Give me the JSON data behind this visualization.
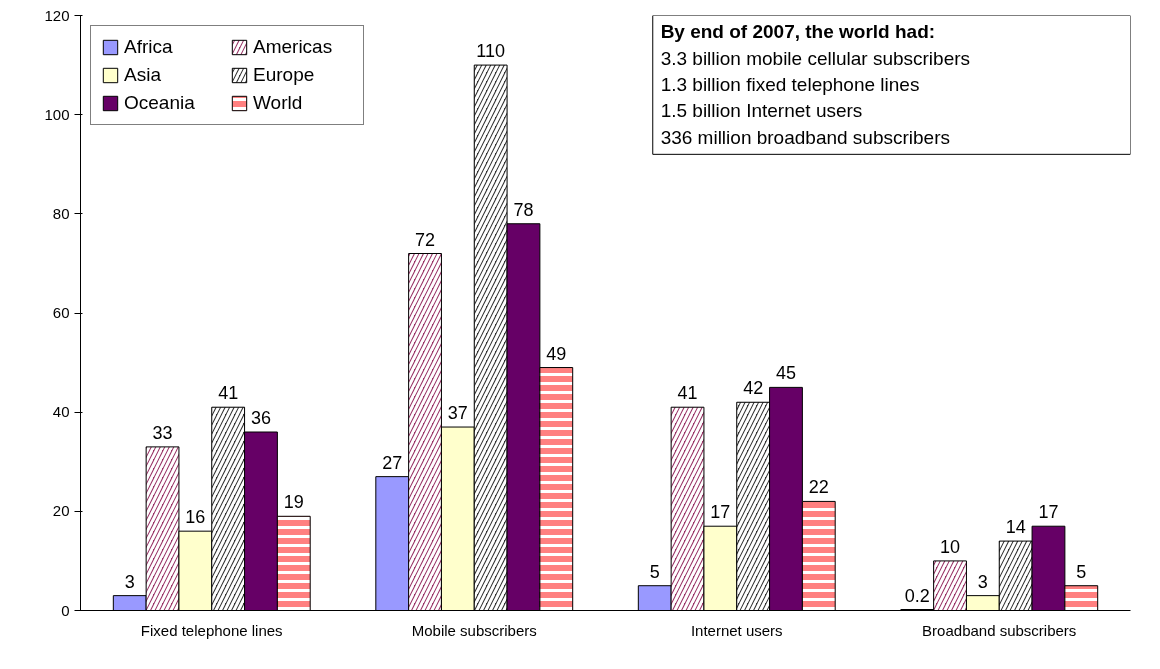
{
  "chart_data": {
    "type": "bar",
    "categories": [
      "Fixed telephone lines",
      "Mobile subscribers",
      "Internet users",
      "Broadband subscribers"
    ],
    "series": [
      {
        "name": "Africa",
        "color": "#9999ff",
        "values": [
          3,
          27,
          5,
          0.2
        ]
      },
      {
        "name": "Americas",
        "color": "#993366",
        "values": [
          33,
          72,
          41,
          10
        ]
      },
      {
        "name": "Asia",
        "color": "#ffffcc",
        "values": [
          16,
          37,
          17,
          3
        ]
      },
      {
        "name": "Europe",
        "color": "#333333",
        "values": [
          41,
          110,
          42,
          14
        ]
      },
      {
        "name": "Oceania",
        "color": "#660066",
        "values": [
          36,
          78,
          45,
          17
        ]
      },
      {
        "name": "World",
        "color": "#ff8080",
        "values": [
          19,
          49,
          22,
          5
        ]
      }
    ],
    "ylim": [
      0,
      120
    ],
    "yticks": [
      0,
      20,
      40,
      60,
      80,
      100,
      120
    ],
    "grid": false,
    "legend": "top left",
    "data_labels": true,
    "annotations": [
      "By end of 2007, the world had:",
      "3.3 billion mobile cellular subscribers",
      "1.3 billion fixed telephone lines",
      "1.5 billion Internet users",
      "336 million broadband subscribers"
    ]
  }
}
